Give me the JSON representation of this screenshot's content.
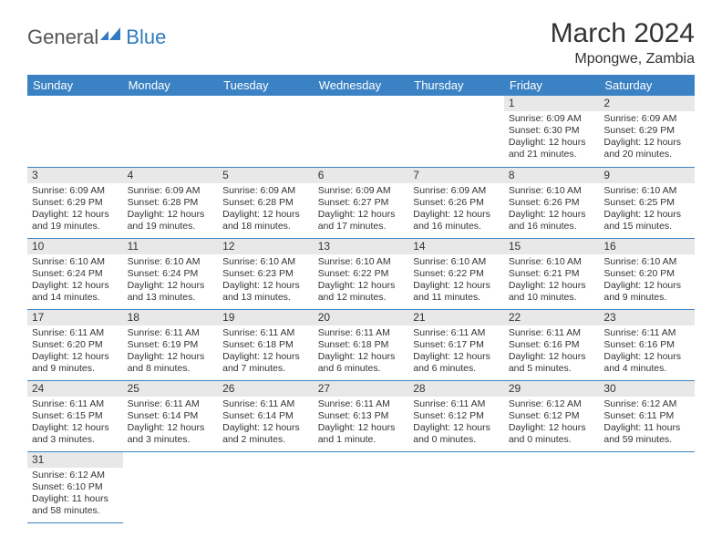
{
  "logo": {
    "general": "General",
    "blue": "Blue"
  },
  "title": "March 2024",
  "location": "Mpongwe, Zambia",
  "header_bg": "#3B82C4",
  "header_fg": "#ffffff",
  "daynum_bg": "#E8E8E8",
  "border_color": "#3B82C4",
  "dayNames": [
    "Sunday",
    "Monday",
    "Tuesday",
    "Wednesday",
    "Thursday",
    "Friday",
    "Saturday"
  ],
  "weeks": [
    [
      null,
      null,
      null,
      null,
      null,
      {
        "n": "1",
        "sr": "Sunrise: 6:09 AM",
        "ss": "Sunset: 6:30 PM",
        "d1": "Daylight: 12 hours",
        "d2": "and 21 minutes."
      },
      {
        "n": "2",
        "sr": "Sunrise: 6:09 AM",
        "ss": "Sunset: 6:29 PM",
        "d1": "Daylight: 12 hours",
        "d2": "and 20 minutes."
      }
    ],
    [
      {
        "n": "3",
        "sr": "Sunrise: 6:09 AM",
        "ss": "Sunset: 6:29 PM",
        "d1": "Daylight: 12 hours",
        "d2": "and 19 minutes."
      },
      {
        "n": "4",
        "sr": "Sunrise: 6:09 AM",
        "ss": "Sunset: 6:28 PM",
        "d1": "Daylight: 12 hours",
        "d2": "and 19 minutes."
      },
      {
        "n": "5",
        "sr": "Sunrise: 6:09 AM",
        "ss": "Sunset: 6:28 PM",
        "d1": "Daylight: 12 hours",
        "d2": "and 18 minutes."
      },
      {
        "n": "6",
        "sr": "Sunrise: 6:09 AM",
        "ss": "Sunset: 6:27 PM",
        "d1": "Daylight: 12 hours",
        "d2": "and 17 minutes."
      },
      {
        "n": "7",
        "sr": "Sunrise: 6:09 AM",
        "ss": "Sunset: 6:26 PM",
        "d1": "Daylight: 12 hours",
        "d2": "and 16 minutes."
      },
      {
        "n": "8",
        "sr": "Sunrise: 6:10 AM",
        "ss": "Sunset: 6:26 PM",
        "d1": "Daylight: 12 hours",
        "d2": "and 16 minutes."
      },
      {
        "n": "9",
        "sr": "Sunrise: 6:10 AM",
        "ss": "Sunset: 6:25 PM",
        "d1": "Daylight: 12 hours",
        "d2": "and 15 minutes."
      }
    ],
    [
      {
        "n": "10",
        "sr": "Sunrise: 6:10 AM",
        "ss": "Sunset: 6:24 PM",
        "d1": "Daylight: 12 hours",
        "d2": "and 14 minutes."
      },
      {
        "n": "11",
        "sr": "Sunrise: 6:10 AM",
        "ss": "Sunset: 6:24 PM",
        "d1": "Daylight: 12 hours",
        "d2": "and 13 minutes."
      },
      {
        "n": "12",
        "sr": "Sunrise: 6:10 AM",
        "ss": "Sunset: 6:23 PM",
        "d1": "Daylight: 12 hours",
        "d2": "and 13 minutes."
      },
      {
        "n": "13",
        "sr": "Sunrise: 6:10 AM",
        "ss": "Sunset: 6:22 PM",
        "d1": "Daylight: 12 hours",
        "d2": "and 12 minutes."
      },
      {
        "n": "14",
        "sr": "Sunrise: 6:10 AM",
        "ss": "Sunset: 6:22 PM",
        "d1": "Daylight: 12 hours",
        "d2": "and 11 minutes."
      },
      {
        "n": "15",
        "sr": "Sunrise: 6:10 AM",
        "ss": "Sunset: 6:21 PM",
        "d1": "Daylight: 12 hours",
        "d2": "and 10 minutes."
      },
      {
        "n": "16",
        "sr": "Sunrise: 6:10 AM",
        "ss": "Sunset: 6:20 PM",
        "d1": "Daylight: 12 hours",
        "d2": "and 9 minutes."
      }
    ],
    [
      {
        "n": "17",
        "sr": "Sunrise: 6:11 AM",
        "ss": "Sunset: 6:20 PM",
        "d1": "Daylight: 12 hours",
        "d2": "and 9 minutes."
      },
      {
        "n": "18",
        "sr": "Sunrise: 6:11 AM",
        "ss": "Sunset: 6:19 PM",
        "d1": "Daylight: 12 hours",
        "d2": "and 8 minutes."
      },
      {
        "n": "19",
        "sr": "Sunrise: 6:11 AM",
        "ss": "Sunset: 6:18 PM",
        "d1": "Daylight: 12 hours",
        "d2": "and 7 minutes."
      },
      {
        "n": "20",
        "sr": "Sunrise: 6:11 AM",
        "ss": "Sunset: 6:18 PM",
        "d1": "Daylight: 12 hours",
        "d2": "and 6 minutes."
      },
      {
        "n": "21",
        "sr": "Sunrise: 6:11 AM",
        "ss": "Sunset: 6:17 PM",
        "d1": "Daylight: 12 hours",
        "d2": "and 6 minutes."
      },
      {
        "n": "22",
        "sr": "Sunrise: 6:11 AM",
        "ss": "Sunset: 6:16 PM",
        "d1": "Daylight: 12 hours",
        "d2": "and 5 minutes."
      },
      {
        "n": "23",
        "sr": "Sunrise: 6:11 AM",
        "ss": "Sunset: 6:16 PM",
        "d1": "Daylight: 12 hours",
        "d2": "and 4 minutes."
      }
    ],
    [
      {
        "n": "24",
        "sr": "Sunrise: 6:11 AM",
        "ss": "Sunset: 6:15 PM",
        "d1": "Daylight: 12 hours",
        "d2": "and 3 minutes."
      },
      {
        "n": "25",
        "sr": "Sunrise: 6:11 AM",
        "ss": "Sunset: 6:14 PM",
        "d1": "Daylight: 12 hours",
        "d2": "and 3 minutes."
      },
      {
        "n": "26",
        "sr": "Sunrise: 6:11 AM",
        "ss": "Sunset: 6:14 PM",
        "d1": "Daylight: 12 hours",
        "d2": "and 2 minutes."
      },
      {
        "n": "27",
        "sr": "Sunrise: 6:11 AM",
        "ss": "Sunset: 6:13 PM",
        "d1": "Daylight: 12 hours",
        "d2": "and 1 minute."
      },
      {
        "n": "28",
        "sr": "Sunrise: 6:11 AM",
        "ss": "Sunset: 6:12 PM",
        "d1": "Daylight: 12 hours",
        "d2": "and 0 minutes."
      },
      {
        "n": "29",
        "sr": "Sunrise: 6:12 AM",
        "ss": "Sunset: 6:12 PM",
        "d1": "Daylight: 12 hours",
        "d2": "and 0 minutes."
      },
      {
        "n": "30",
        "sr": "Sunrise: 6:12 AM",
        "ss": "Sunset: 6:11 PM",
        "d1": "Daylight: 11 hours",
        "d2": "and 59 minutes."
      }
    ],
    [
      {
        "n": "31",
        "sr": "Sunrise: 6:12 AM",
        "ss": "Sunset: 6:10 PM",
        "d1": "Daylight: 11 hours",
        "d2": "and 58 minutes."
      },
      null,
      null,
      null,
      null,
      null,
      null
    ]
  ]
}
